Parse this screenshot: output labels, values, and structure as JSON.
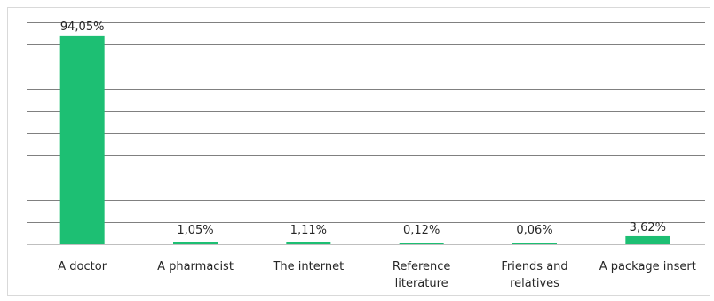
{
  "chart_data": {
    "type": "bar",
    "categories": [
      "A doctor",
      "A pharmacist",
      "The internet",
      "Reference literature",
      "Friends and relatives",
      "A package insert"
    ],
    "category_lines": [
      [
        "A doctor"
      ],
      [
        "A pharmacist"
      ],
      [
        "The internet"
      ],
      [
        "Reference",
        "literature"
      ],
      [
        "Friends and",
        "relatives"
      ],
      [
        "A package insert"
      ]
    ],
    "values": [
      94.05,
      1.05,
      1.11,
      0.12,
      0.06,
      3.62
    ],
    "data_labels": [
      "94,05%",
      "1,05%",
      "1,11%",
      "0,12%",
      "0,06%",
      "3,62%"
    ],
    "title": "",
    "xlabel": "",
    "ylabel": "",
    "ylim": [
      0,
      100
    ],
    "grid": true,
    "bar_color": "#1dbf73",
    "grid_color": "#808080"
  }
}
